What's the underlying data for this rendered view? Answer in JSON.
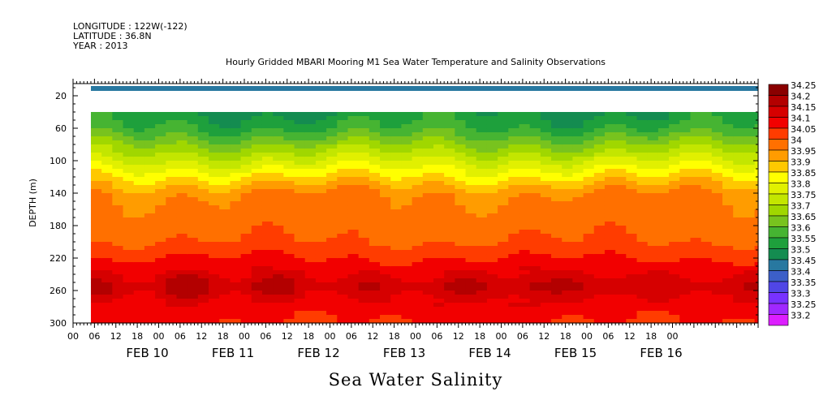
{
  "header": {
    "longitude": "LONGITUDE : 122W(-122)",
    "latitude": "LATITUDE : 36.8N",
    "year": "YEAR : 2013"
  },
  "chart_data": {
    "type": "heatmap",
    "title": "Hourly Gridded MBARI Mooring M1 Sea Water Temperature and Salinity Observations",
    "caption": "Sea Water Salinity",
    "ylabel": "DEPTH (m)",
    "ylim": [
      300,
      5
    ],
    "y_ticks": [
      20,
      60,
      100,
      140,
      180,
      220,
      260,
      300
    ],
    "x_range_hours": [
      "2013-02-09 00:00",
      "2013-02-17 00:00"
    ],
    "x_tick_labels": [
      "00",
      "06",
      "12",
      "18",
      "00",
      "06",
      "12",
      "18",
      "00",
      "06",
      "12",
      "18",
      "00",
      "06",
      "12",
      "18",
      "00",
      "06",
      "12",
      "18",
      "00",
      "06",
      "12",
      "18",
      "00",
      "06",
      "12",
      "18",
      "00"
    ],
    "x_date_labels": [
      "FEB 10",
      "FEB 11",
      "FEB 12",
      "FEB 13",
      "FEB 14",
      "FEB 15",
      "FEB 16"
    ],
    "data_start": "2013-02-09 05:00",
    "data_end": "2013-02-16 23:00",
    "surface_layer": {
      "depth": [
        8,
        14
      ],
      "value": 33.45
    },
    "missing_depth": [
      14,
      40
    ],
    "field_profile": [
      {
        "depth": 40,
        "value": 33.55
      },
      {
        "depth": 60,
        "value": 33.6
      },
      {
        "depth": 80,
        "value": 33.7
      },
      {
        "depth": 100,
        "value": 33.8
      },
      {
        "depth": 120,
        "value": 33.9
      },
      {
        "depth": 140,
        "value": 34.0
      },
      {
        "depth": 180,
        "value": 34.03
      },
      {
        "depth": 200,
        "value": 34.05
      },
      {
        "depth": 220,
        "value": 34.1
      },
      {
        "depth": 240,
        "value": 34.15
      },
      {
        "depth": 255,
        "value": 34.2
      },
      {
        "depth": 270,
        "value": 34.15
      },
      {
        "depth": 285,
        "value": 34.12
      },
      {
        "depth": 300,
        "value": 34.1
      }
    ],
    "legend": {
      "placement": "right",
      "levels": [
        {
          "label": "34.25",
          "color": "#8a0000"
        },
        {
          "label": "34.2",
          "color": "#b30000"
        },
        {
          "label": "34.15",
          "color": "#d60000"
        },
        {
          "label": "34.1",
          "color": "#f20000"
        },
        {
          "label": "34.05",
          "color": "#ff3c00"
        },
        {
          "label": "34",
          "color": "#ff7000"
        },
        {
          "label": "33.95",
          "color": "#ff9c00"
        },
        {
          "label": "33.9",
          "color": "#ffc800"
        },
        {
          "label": "33.85",
          "color": "#ffff00"
        },
        {
          "label": "33.8",
          "color": "#e1f000"
        },
        {
          "label": "33.75",
          "color": "#c3e600"
        },
        {
          "label": "33.7",
          "color": "#a0d700"
        },
        {
          "label": "33.65",
          "color": "#78c31e"
        },
        {
          "label": "33.6",
          "color": "#46b432"
        },
        {
          "label": "33.55",
          "color": "#1ea03c"
        },
        {
          "label": "33.5",
          "color": "#148c50"
        },
        {
          "label": "33.45",
          "color": "#2878a0"
        },
        {
          "label": "33.4",
          "color": "#3c5fc8"
        },
        {
          "label": "33.35",
          "color": "#5046e6"
        },
        {
          "label": "33.3",
          "color": "#7832ff"
        },
        {
          "label": "33.25",
          "color": "#a028ff"
        },
        {
          "label": "33.2",
          "color": "#dc1eff"
        }
      ]
    }
  }
}
